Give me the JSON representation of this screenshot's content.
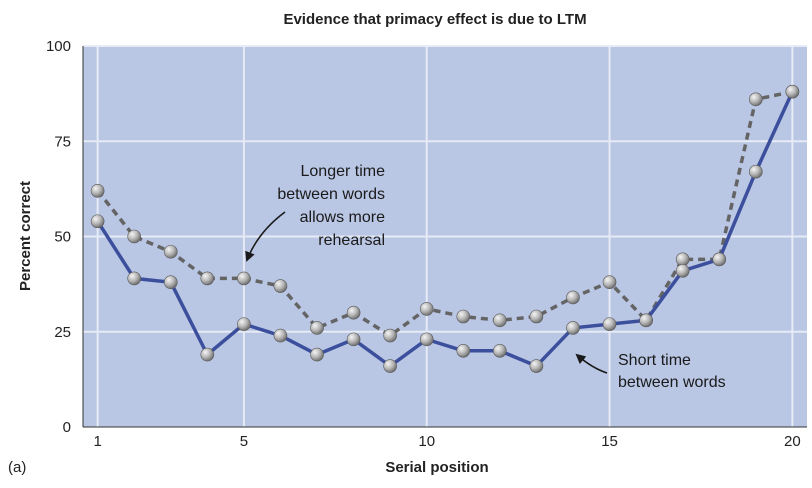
{
  "chart_data": {
    "type": "line",
    "title": "Evidence that primacy effect is due to LTM",
    "xlabel": "Serial position",
    "ylabel": "Percent correct",
    "panel_label": "(a)",
    "xlim": [
      0.6,
      20.4
    ],
    "ylim": [
      0,
      100
    ],
    "xticks": [
      1,
      5,
      10,
      15,
      20
    ],
    "yticks": [
      0,
      25,
      50,
      75,
      100
    ],
    "grid": true,
    "colors": {
      "background": "#b9c6e4",
      "grid": "#e6ebf6",
      "short_line": "#3c4f9c",
      "long_line": "#646464",
      "marker": "#a9a9a9"
    },
    "series": [
      {
        "key": "long",
        "x": [
          1,
          2,
          3,
          4,
          5,
          6,
          7,
          8,
          9,
          10,
          11,
          12,
          13,
          14,
          15,
          16,
          17,
          18,
          19,
          20
        ],
        "y": [
          62,
          50,
          46,
          39,
          39,
          37,
          26,
          30,
          24,
          31,
          29,
          28,
          29,
          34,
          38,
          28,
          44,
          44,
          86,
          88
        ]
      },
      {
        "key": "short",
        "x": [
          1,
          2,
          3,
          4,
          5,
          6,
          7,
          8,
          9,
          10,
          11,
          12,
          13,
          14,
          15,
          16,
          17,
          18,
          19,
          20
        ],
        "y": [
          54,
          39,
          38,
          19,
          27,
          24,
          19,
          23,
          16,
          23,
          20,
          20,
          16,
          26,
          27,
          28,
          41,
          44,
          67,
          88
        ]
      }
    ],
    "annotations": [
      {
        "key": "long",
        "lines": [
          "Longer time",
          "between words",
          "allows more",
          "rehearsal"
        ]
      },
      {
        "key": "short",
        "lines": [
          "Short time",
          "between words"
        ]
      }
    ]
  }
}
